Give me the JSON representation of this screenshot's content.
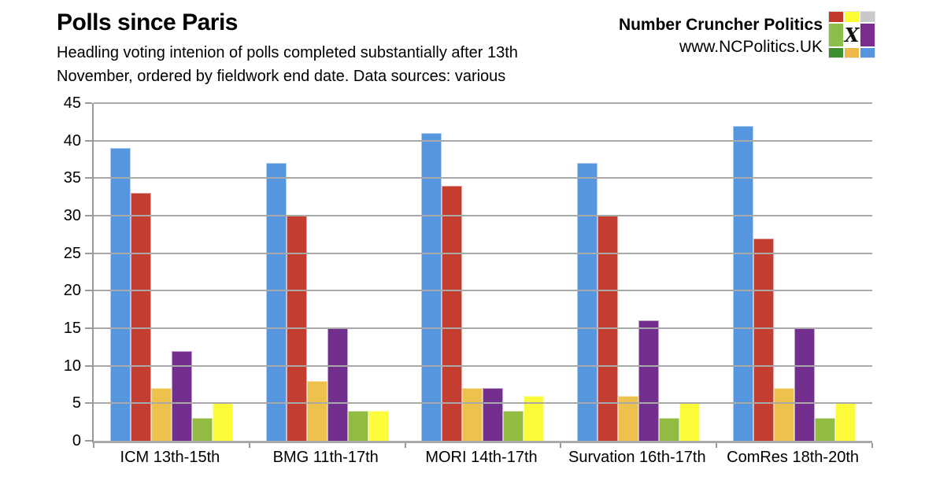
{
  "header": {
    "title": "Polls since Paris",
    "subtitle_line1": "Headling voting intenion of polls completed substantially after 13th",
    "subtitle_line2": "November, ordered by fieldwork end date. Data sources: various"
  },
  "brand": {
    "name": "Number Cruncher Politics",
    "url": "www.NCPolitics.UK",
    "logo_grid": [
      {
        "name": "logo-cell-red",
        "color": "#C1392B",
        "glyph": ""
      },
      {
        "name": "logo-cell-yellow",
        "color": "#FCFC33",
        "glyph": ""
      },
      {
        "name": "logo-cell-gray",
        "color": "#C9C9C9",
        "glyph": ""
      },
      {
        "name": "logo-cell-lightgreen",
        "color": "#8DBE4A",
        "glyph": ""
      },
      {
        "name": "logo-cell-x",
        "color": "#FFFFFF",
        "glyph": "X"
      },
      {
        "name": "logo-cell-purple",
        "color": "#7B2D8E",
        "glyph": ""
      },
      {
        "name": "logo-cell-darkgreen",
        "color": "#3D8E2E",
        "glyph": ""
      },
      {
        "name": "logo-cell-gold",
        "color": "#EDB94D",
        "glyph": ""
      },
      {
        "name": "logo-cell-blue",
        "color": "#5596DF",
        "glyph": ""
      }
    ]
  },
  "chart_data": {
    "type": "bar",
    "title": "Polls since Paris",
    "xlabel": "",
    "ylabel": "",
    "ylim": [
      0,
      45
    ],
    "yticks": [
      0,
      5,
      10,
      15,
      20,
      25,
      30,
      35,
      40,
      45
    ],
    "grid": true,
    "legend": "none",
    "categories": [
      "ICM 13th-15th",
      "BMG 11th-17th",
      "MORI 14th-17th",
      "Survation 16th-17th",
      "ComRes 18th-20th"
    ],
    "series": [
      {
        "name": "blue",
        "color": "#5596DF",
        "values": [
          39,
          37,
          41,
          37,
          42
        ]
      },
      {
        "name": "red",
        "color": "#C43D31",
        "values": [
          33,
          30,
          34,
          30,
          27
        ]
      },
      {
        "name": "gold",
        "color": "#EEC04C",
        "values": [
          7,
          8,
          7,
          6,
          7
        ]
      },
      {
        "name": "purple",
        "color": "#722F8D",
        "values": [
          12,
          15,
          7,
          16,
          15
        ]
      },
      {
        "name": "green",
        "color": "#91BB41",
        "values": [
          3,
          4,
          4,
          3,
          3
        ]
      },
      {
        "name": "yellow",
        "color": "#FCFC3B",
        "values": [
          5,
          4,
          6,
          5,
          5
        ]
      }
    ]
  },
  "colors": {
    "gridline": "#A9A9A9",
    "axis": "#9A9A9A",
    "text": "#000000"
  }
}
